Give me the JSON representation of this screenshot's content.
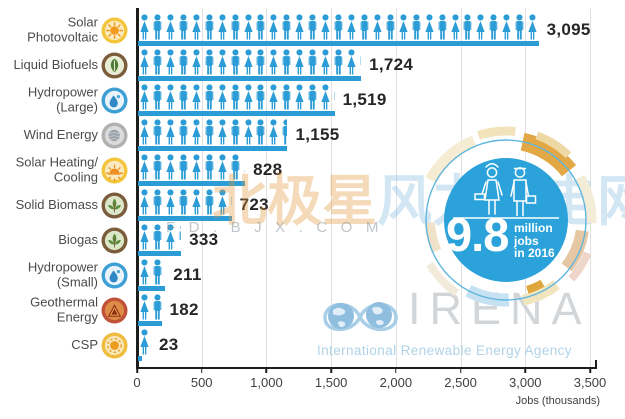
{
  "chart_data": {
    "type": "bar",
    "style": "pictogram",
    "xlabel": "Jobs (thousands)",
    "xlim": [
      0,
      3500
    ],
    "grid": "vertical",
    "icon_unit_thousands": 100,
    "bar_color": "#2B9CD6",
    "x_ticks": [
      {
        "value": 0,
        "label": "0"
      },
      {
        "value": 500,
        "label": "500"
      },
      {
        "value": 1000,
        "label": "1,000"
      },
      {
        "value": 1500,
        "label": "1,500"
      },
      {
        "value": 2000,
        "label": "2,000"
      },
      {
        "value": 2500,
        "label": "2,500"
      },
      {
        "value": 3000,
        "label": "3,000"
      },
      {
        "value": 3500,
        "label": "3,500"
      }
    ],
    "rows": [
      {
        "label": "Solar\nPhotovoltaic",
        "value": 3095,
        "value_label": "3,095",
        "icon": "solar-pv-icon"
      },
      {
        "label": "Liquid Biofuels",
        "value": 1724,
        "value_label": "1,724",
        "icon": "biofuel-icon"
      },
      {
        "label": "Hydropower\n(Large)",
        "value": 1519,
        "value_label": "1,519",
        "icon": "hydro-icon"
      },
      {
        "label": "Wind Energy",
        "value": 1155,
        "value_label": "1,155",
        "icon": "wind-icon"
      },
      {
        "label": "Solar Heating/\nCooling",
        "value": 828,
        "value_label": "828",
        "icon": "solar-heat-icon"
      },
      {
        "label": "Solid Biomass",
        "value": 723,
        "value_label": "723",
        "icon": "biomass-icon"
      },
      {
        "label": "Biogas",
        "value": 333,
        "value_label": "333",
        "icon": "biogas-icon"
      },
      {
        "label": "Hydropower\n(Small)",
        "value": 211,
        "value_label": "211",
        "icon": "hydro-small-icon"
      },
      {
        "label": "Geothermal\nEnergy",
        "value": 182,
        "value_label": "182",
        "icon": "geothermal-icon"
      },
      {
        "label": "CSP",
        "value": 23,
        "value_label": "23",
        "icon": "csp-icon"
      }
    ]
  },
  "badge": {
    "headline": "9.8",
    "sub_lines": [
      "million",
      "jobs",
      "in 2016"
    ],
    "color": "#2BA2DA"
  },
  "logo": {
    "acronym": "IRENA",
    "subtitle": "International Renewable Energy Agency"
  },
  "watermark": {
    "cn_text": "北极星风力发电网",
    "cn_colors": [
      "#E3973B",
      "#E3973B",
      "#E3973B",
      "#7FB9E0",
      "#7FB9E0",
      "#7FB9E0",
      "#7FB9E0",
      "#7FB9E0"
    ],
    "en_text": "FD.BJX.COM"
  }
}
